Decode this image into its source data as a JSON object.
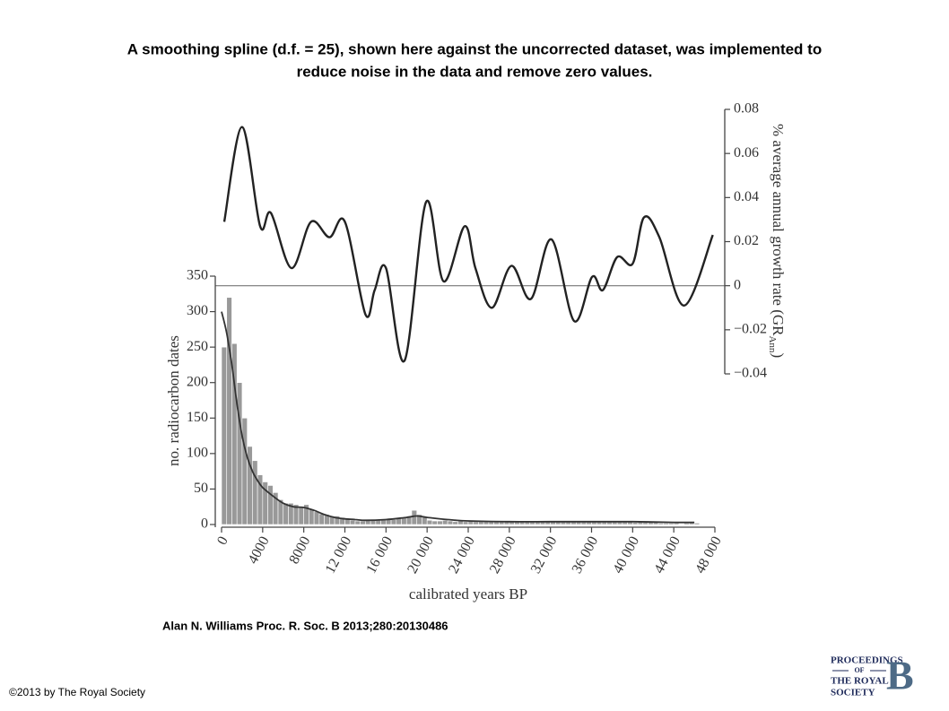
{
  "chart_data": {
    "type": "histogram",
    "title": [
      "A smoothing spline (d.f. = 25), shown here against the uncorrected dataset, was implemented to",
      "reduce noise in the data and remove zero values."
    ],
    "xlabel": "calibrated years BP",
    "ylabel": "no. radiocarbon dates",
    "y2label": "% average annual growth rate (GR",
    "y2label_sub": "Ann",
    "y2label_end": ")",
    "color": "#999999",
    "bins": [
      0,
      500,
      1000,
      1500,
      2000,
      2500,
      3000,
      3500,
      4000,
      4500,
      5000,
      5500,
      6000,
      6500,
      7000,
      7500,
      8000,
      8500,
      9000,
      9500,
      10000,
      10500,
      11000,
      11500,
      12000,
      12500,
      13000,
      13500,
      14000,
      14500,
      15000,
      15500,
      16000,
      16500,
      17000,
      17500,
      18000,
      18500,
      19000,
      19500,
      20000,
      20500,
      21000,
      21500,
      22000,
      22500,
      23000,
      23500,
      24000,
      24500,
      25000,
      25500,
      26000,
      26500,
      27000,
      27500,
      28000,
      28500,
      29000,
      29500,
      30000,
      30500,
      31000,
      31500,
      32000,
      32500,
      33000,
      33500,
      34000,
      34500,
      35000,
      35500,
      36000,
      36500,
      37000,
      37500,
      38000,
      38500,
      39000,
      39500,
      40000,
      40500,
      41000,
      41500,
      42000,
      42500,
      43000,
      43500,
      44000,
      44500,
      45000,
      45500,
      46000,
      46500,
      47000,
      47500,
      48000
    ],
    "counts": [
      250,
      320,
      255,
      200,
      150,
      110,
      90,
      70,
      60,
      55,
      45,
      35,
      30,
      30,
      28,
      25,
      28,
      22,
      18,
      15,
      14,
      12,
      12,
      10,
      8,
      6,
      5,
      5,
      6,
      6,
      7,
      7,
      8,
      7,
      9,
      10,
      12,
      20,
      14,
      10,
      6,
      5,
      5,
      6,
      5,
      4,
      5,
      4,
      5,
      4,
      5,
      5,
      4,
      5,
      5,
      4,
      5,
      5,
      4,
      5,
      4,
      4,
      5,
      4,
      4,
      5,
      4,
      4,
      5,
      4,
      5,
      5,
      4,
      5,
      5,
      4,
      5,
      4,
      4,
      4,
      3,
      4,
      3,
      3,
      3,
      2,
      2,
      2,
      2,
      0,
      2,
      3,
      2,
      0,
      0,
      0
    ],
    "series": [
      {
        "color": "#333333",
        "x": [
          0,
          500,
          1000,
          1500,
          2000,
          2500,
          3000,
          3500,
          4000,
          5000,
          6000,
          7000,
          8000,
          9000,
          10000,
          11000,
          12000,
          13000,
          14000,
          16000,
          18000,
          19000,
          20000,
          22000,
          24000,
          28000,
          32000,
          36000,
          40000,
          44000,
          46000
        ],
        "values": [
          300,
          270,
          225,
          170,
          125,
          95,
          75,
          62,
          52,
          40,
          30,
          25,
          24,
          20,
          14,
          10,
          8,
          7,
          6,
          7,
          10,
          12,
          10,
          7,
          5,
          4,
          4,
          4,
          4,
          3,
          3
        ]
      },
      {
        "color": "#222222",
        "axis": "y2",
        "x": [
          260,
          2000,
          3750,
          4800,
          6800,
          8700,
          10500,
          12000,
          14000,
          14900,
          16000,
          17800,
          19900,
          21600,
          23650,
          24700,
          26300,
          28200,
          30100,
          32100,
          34300,
          36050,
          37100,
          38500,
          40000,
          41100,
          42600,
          45000,
          47800
        ],
        "values": [
          0.029,
          0.072,
          0.027,
          0.033,
          0.008,
          0.029,
          0.022,
          0.029,
          -0.013,
          -0.002,
          0.008,
          -0.034,
          0.038,
          0.002,
          0.027,
          0.008,
          -0.01,
          0.009,
          -0.006,
          0.021,
          -0.016,
          0.004,
          -0.002,
          0.013,
          0.01,
          0.031,
          0.022,
          -0.009,
          0.023
        ]
      }
    ],
    "xlim": [
      0,
      48000
    ],
    "xticks": [
      0,
      4000,
      8000,
      {
        "value": 12000,
        "label": "12 000"
      },
      {
        "value": 16000,
        "label": "16 000"
      },
      {
        "value": 20000,
        "label": "20 000"
      },
      {
        "value": 24000,
        "label": "24 000"
      },
      {
        "value": 28000,
        "label": "28 000"
      },
      {
        "value": 32000,
        "label": "32 000"
      },
      {
        "value": 36000,
        "label": "36 000"
      },
      {
        "value": 40000,
        "label": "40 000"
      },
      {
        "value": 44000,
        "label": "44 000"
      },
      {
        "value": 48000,
        "label": "48 000"
      }
    ],
    "ylim": [
      0,
      350
    ],
    "yticks": [
      0,
      50,
      100,
      150,
      200,
      250,
      300,
      350
    ],
    "y2lim": [
      -0.04,
      0.08
    ],
    "y2ticks": [
      {
        "value": -0.04,
        "label": "−0.04"
      },
      {
        "value": -0.02,
        "label": "−0.02"
      },
      0,
      0.02,
      0.04,
      0.06,
      0.08
    ]
  },
  "citation": "Alan N. Williams Proc. R. Soc. B 2013;280:20130486",
  "copyright": "©2013 by The Royal Society",
  "logo": {
    "line1": "PROCEEDINGS",
    "line2": "OF",
    "line3": "THE ROYAL",
    "line4": "SOCIETY",
    "letter": "B"
  }
}
